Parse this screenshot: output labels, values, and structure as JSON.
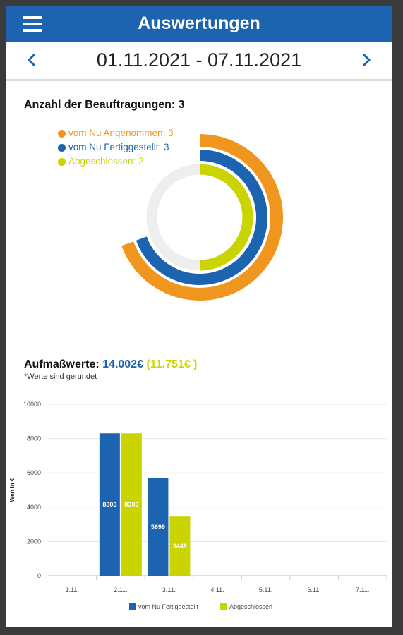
{
  "app_bar": {
    "title": "Auswertungen",
    "menu_icon": "hamburger-icon",
    "color": "#1d64b0"
  },
  "date_nav": {
    "range": "01.11.2021 - 07.11.2021",
    "prev_icon": "chevron-left-icon",
    "next_icon": "chevron-right-icon"
  },
  "orders": {
    "title": "Anzahl der Beauftragungen: 3",
    "legend": [
      {
        "label": "vom Nu Angenommen: 3",
        "color": "#f0961e"
      },
      {
        "label": "vom Nu Fertiggestellt: 3",
        "color": "#1d64b0"
      },
      {
        "label": "Abgeschlossen: 2",
        "color": "#c9d400"
      }
    ]
  },
  "measure": {
    "title_prefix": "Aufmaßwerte:",
    "value_total": "14.002€",
    "value_closed": "(11.751€ )",
    "note": "*Werte sind gerundet"
  },
  "chart_data": [
    {
      "type": "pie",
      "variant": "radial-rings",
      "title": "Anzahl der Beauftragungen: 3",
      "max": 3,
      "series": [
        {
          "name": "vom Nu Angenommen",
          "value": 3,
          "color": "#f0961e"
        },
        {
          "name": "vom Nu Fertiggestellt",
          "value": 3,
          "color": "#1d64b0"
        },
        {
          "name": "Abgeschlossen",
          "value": 2,
          "color": "#c9d400"
        }
      ]
    },
    {
      "type": "bar",
      "categories": [
        "1.11.",
        "2.11.",
        "3.11.",
        "4.11.",
        "5.11.",
        "6.11.",
        "7.11."
      ],
      "series": [
        {
          "name": "vom Nu Fertiggestellt",
          "color": "#1d64b0",
          "values": [
            0,
            8303,
            5699,
            0,
            0,
            0,
            0
          ]
        },
        {
          "name": "Abgeschlossen",
          "color": "#c9d400",
          "values": [
            0,
            8303,
            3448,
            0,
            0,
            0,
            0
          ]
        }
      ],
      "ylabel": "Wert in €",
      "ylim": [
        0,
        10000
      ],
      "yticks": [
        0,
        2000,
        4000,
        6000,
        8000,
        10000
      ],
      "grid": true,
      "legend_position": "bottom"
    }
  ]
}
